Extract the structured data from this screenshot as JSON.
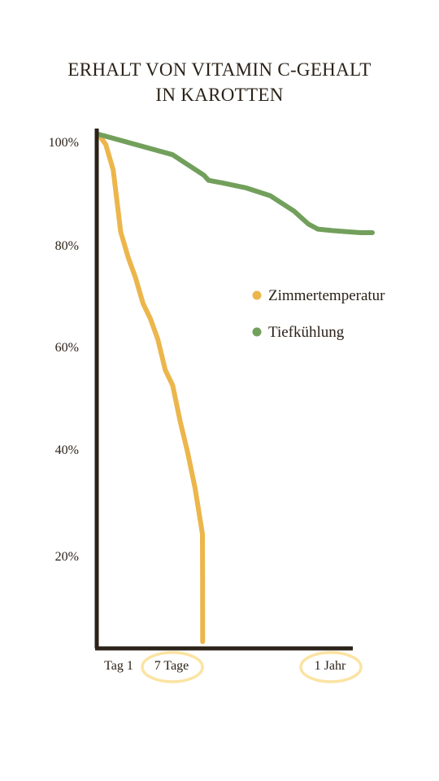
{
  "chart_data": {
    "type": "line",
    "title_lines": [
      "ERHALT VON VITAMIN C-GEHALT",
      "IN KAROTTEN"
    ],
    "y_ticks": [
      "100%",
      "80%",
      "60%",
      "40%",
      "20%"
    ],
    "y_tick_values": [
      100,
      80,
      60,
      40,
      20
    ],
    "x_ticks": [
      "Tag 1",
      "7 Tage",
      "1 Jahr"
    ],
    "highlighted_x_ticks": [
      "7 Tage",
      "1 Jahr"
    ],
    "ylim": [
      0,
      100
    ],
    "legend_position": "right",
    "series": [
      {
        "name": "Zimmertemperatur",
        "color": "#ecb64c",
        "x": [
          0,
          0.5,
          1,
          1.5,
          2,
          2.5,
          3,
          3.5,
          4,
          4.5,
          5,
          5.5,
          6,
          6.5,
          7,
          7.3,
          7.5
        ],
        "values": [
          100,
          98,
          93,
          81,
          76,
          72,
          67,
          64,
          60,
          54,
          51,
          44,
          38,
          31,
          22,
          14,
          1
        ]
      },
      {
        "name": "Tiefkühlung",
        "color": "#72a05c",
        "x": [
          0,
          5,
          10,
          20,
          50,
          100,
          150,
          200,
          230,
          250,
          280,
          310,
          340,
          365
        ],
        "values": [
          100,
          96,
          92,
          91,
          90.5,
          89.5,
          88,
          85,
          82.5,
          81.5,
          81.2,
          81,
          80.8,
          80.8
        ]
      }
    ],
    "axis_color": "#2b2218",
    "highlight_color": "#fbe3a2"
  }
}
